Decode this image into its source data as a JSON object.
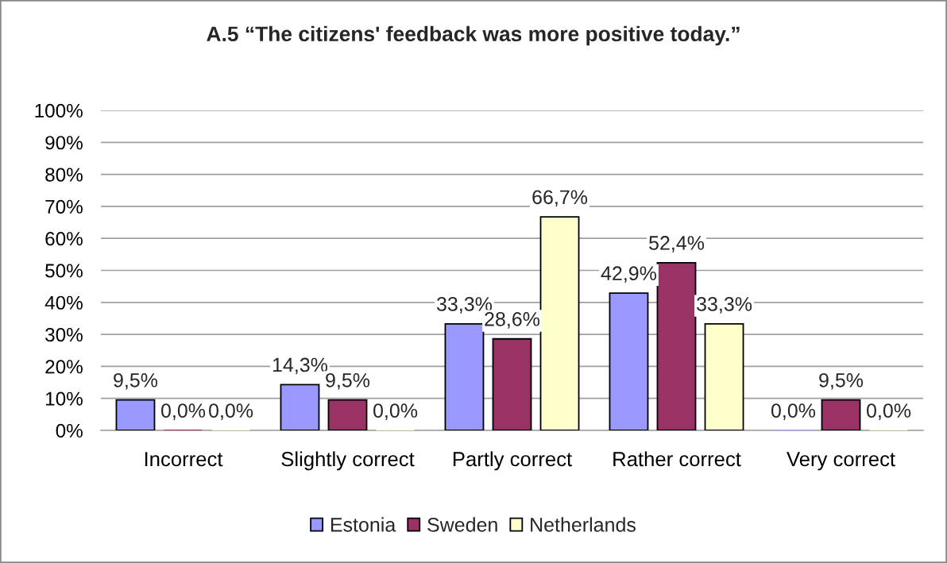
{
  "chart_data": {
    "type": "bar",
    "title": "A.5 “The citizens' feedback was more positive today.”",
    "categories": [
      "Incorrect",
      "Slightly correct",
      "Partly correct",
      "Rather correct",
      "Very correct"
    ],
    "series": [
      {
        "name": "Estonia",
        "color": "#9999ff",
        "values": [
          9.5,
          14.3,
          33.3,
          42.9,
          0.0
        ],
        "value_labels": [
          "9,5%",
          "14,3%",
          "33,3%",
          "42,9%",
          "0,0%"
        ]
      },
      {
        "name": "Sweden",
        "color": "#993366",
        "values": [
          0.0,
          9.5,
          28.6,
          52.4,
          9.5
        ],
        "value_labels": [
          "0,0%",
          "9,5%",
          "28,6%",
          "52,4%",
          "9,5%"
        ]
      },
      {
        "name": "Netherlands",
        "color": "#ffffcc",
        "values": [
          0.0,
          0.0,
          66.7,
          33.3,
          0.0
        ],
        "value_labels": [
          "0,0%",
          "0,0%",
          "66,7%",
          "33,3%",
          "0,0%"
        ]
      }
    ],
    "ylim": [
      0,
      100
    ],
    "yticks": [
      {
        "value": 0,
        "label": "0%"
      },
      {
        "value": 10,
        "label": "10%"
      },
      {
        "value": 20,
        "label": "20%"
      },
      {
        "value": 30,
        "label": "30%"
      },
      {
        "value": 40,
        "label": "40%"
      },
      {
        "value": 50,
        "label": "50%"
      },
      {
        "value": 60,
        "label": "60%"
      },
      {
        "value": 70,
        "label": "70%"
      },
      {
        "value": 80,
        "label": "80%"
      },
      {
        "value": 90,
        "label": "90%"
      },
      {
        "value": 100,
        "label": "100%"
      }
    ],
    "grid": "y",
    "legend": "bottom"
  }
}
